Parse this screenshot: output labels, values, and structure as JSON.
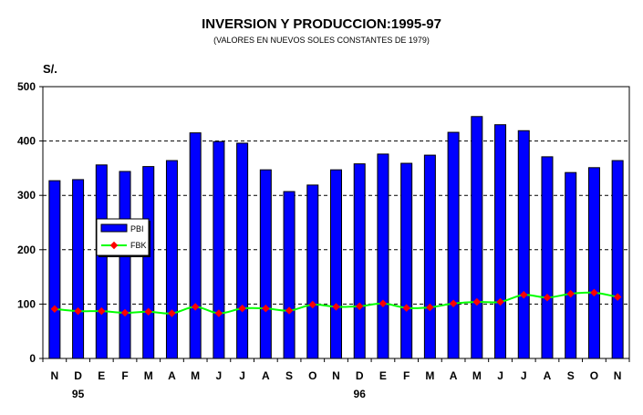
{
  "chart_data": {
    "type": "bar",
    "title": "INVERSION Y PRODUCCION:1995-97",
    "subtitle": "(VALORES EN NUEVOS SOLES CONSTANTES DE 1979)",
    "ylabel": "S/.",
    "ylim": [
      0,
      500
    ],
    "yticks": [
      "0",
      "100",
      "200",
      "300",
      "400",
      "500"
    ],
    "categories": [
      "N",
      "D",
      "E",
      "F",
      "M",
      "A",
      "M",
      "J",
      "J",
      "A",
      "S",
      "O",
      "N",
      "D",
      "E",
      "F",
      "M",
      "A",
      "M",
      "J",
      "J",
      "A",
      "S",
      "O",
      "N"
    ],
    "year_labels": [
      {
        "index": 1,
        "label": "95"
      },
      {
        "index": 13,
        "label": "96"
      }
    ],
    "legend_position": "left-middle",
    "grid": "horizontal dashed",
    "series": [
      {
        "name": "PBI",
        "type": "bar",
        "color": "#0000ff",
        "values": [
          327,
          329,
          356,
          344,
          353,
          364,
          415,
          399,
          396,
          347,
          307,
          319,
          347,
          358,
          376,
          359,
          374,
          416,
          445,
          430,
          419,
          371,
          342,
          351,
          364
        ]
      },
      {
        "name": "FBK",
        "type": "line",
        "color": "#00ff00",
        "marker_color": "#ff0000",
        "values": [
          91,
          87,
          87,
          84,
          86,
          83,
          95,
          83,
          92,
          92,
          88,
          99,
          95,
          96,
          101,
          93,
          94,
          101,
          104,
          104,
          117,
          112,
          119,
          121,
          113
        ]
      }
    ]
  }
}
